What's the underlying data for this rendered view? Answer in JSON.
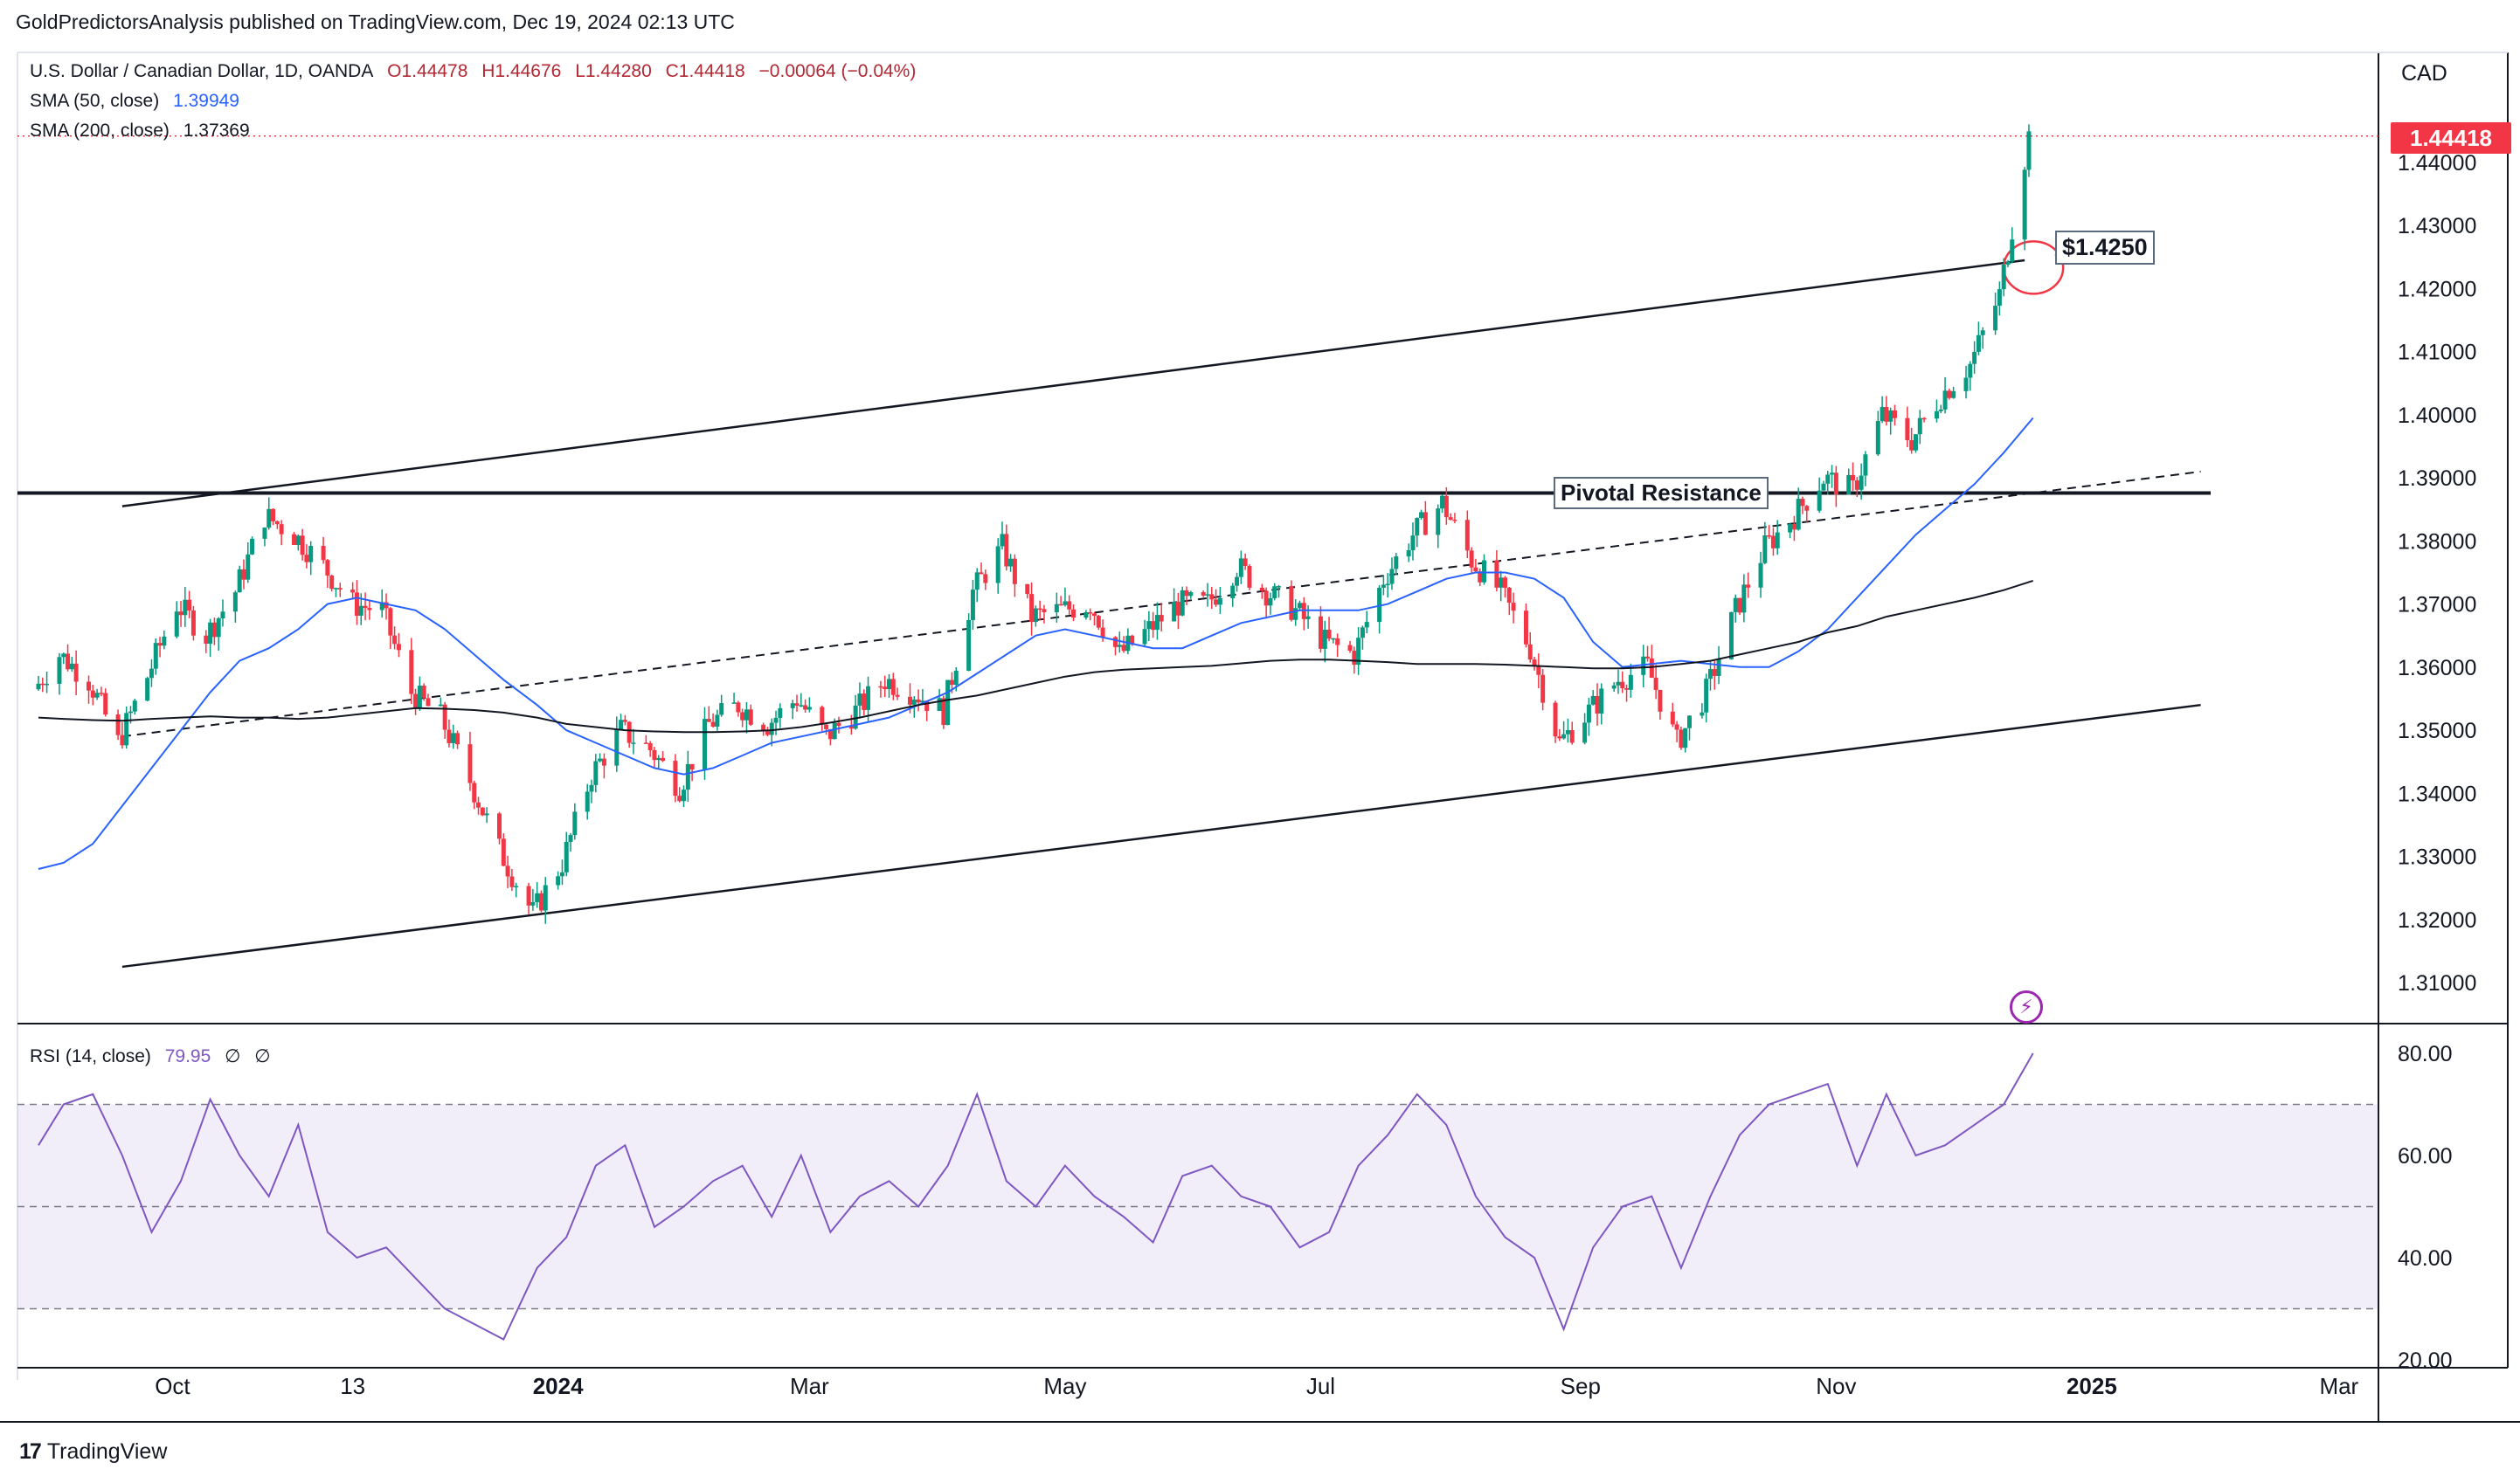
{
  "header": {
    "publisher_line": "GoldPredictorsAnalysis published on TradingView.com, Dec 19, 2024 02:13 UTC"
  },
  "legend": {
    "symbol": "U.S. Dollar / Canadian Dollar, 1D, OANDA",
    "open": "O1.44478",
    "high": "H1.44676",
    "low": "L1.44280",
    "close": "C1.44418",
    "change": "−0.00064 (−0.04%)",
    "sma50_label": "SMA (50, close)",
    "sma50_value": "1.39949",
    "sma200_label": "SMA (200, close)",
    "sma200_value": "1.37369",
    "rsi_label": "RSI (14, close)",
    "rsi_value": "79.95",
    "rsi_extra1": "∅",
    "rsi_extra2": "∅"
  },
  "price_axis": {
    "currency": "CAD",
    "current_price": "1.44418"
  },
  "annotations": {
    "level_label": "$1.4250",
    "pivot_label": "Pivotal Resistance"
  },
  "footer": {
    "logo_mark": "17",
    "brand": "TradingView"
  },
  "colors": {
    "up_candle": "#089981",
    "down_candle": "#f23645",
    "sma50": "#2962ff",
    "sma200": "#131722",
    "rsi_line": "#7e57c2",
    "rsi_band": "#7e57c2",
    "badge": "#f23645"
  },
  "chart_data": [
    {
      "type": "line",
      "title": "U.S. Dollar / Canadian Dollar, 1D, OANDA",
      "x_tick_labels": [
        "Oct",
        "13",
        "2024",
        "Mar",
        "May",
        "Jul",
        "Sep",
        "Nov",
        "2025",
        "Mar"
      ],
      "y_tick_labels": [
        "1.44000",
        "1.43000",
        "1.42000",
        "1.41000",
        "1.40000",
        "1.39000",
        "1.38000",
        "1.37000",
        "1.36000",
        "1.35000",
        "1.34000",
        "1.33000",
        "1.32000",
        "1.31000"
      ],
      "ylim": [
        1.305,
        1.452
      ],
      "x": [
        "2023-08-30",
        "2023-09-05",
        "2023-09-12",
        "2023-09-19",
        "2023-09-26",
        "2023-10-03",
        "2023-10-10",
        "2023-10-17",
        "2023-10-24",
        "2023-10-31",
        "2023-11-07",
        "2023-11-14",
        "2023-11-21",
        "2023-11-28",
        "2023-12-05",
        "2023-12-12",
        "2023-12-19",
        "2023-12-27",
        "2024-01-03",
        "2024-01-10",
        "2024-01-17",
        "2024-01-24",
        "2024-01-31",
        "2024-02-07",
        "2024-02-14",
        "2024-02-21",
        "2024-02-28",
        "2024-03-06",
        "2024-03-13",
        "2024-03-20",
        "2024-03-27",
        "2024-04-03",
        "2024-04-10",
        "2024-04-17",
        "2024-04-24",
        "2024-05-01",
        "2024-05-08",
        "2024-05-15",
        "2024-05-22",
        "2024-05-29",
        "2024-06-05",
        "2024-06-12",
        "2024-06-19",
        "2024-06-26",
        "2024-07-03",
        "2024-07-10",
        "2024-07-17",
        "2024-07-24",
        "2024-07-31",
        "2024-08-07",
        "2024-08-14",
        "2024-08-21",
        "2024-08-28",
        "2024-09-04",
        "2024-09-11",
        "2024-09-18",
        "2024-09-25",
        "2024-10-02",
        "2024-10-09",
        "2024-10-16",
        "2024-10-23",
        "2024-10-30",
        "2024-11-06",
        "2024-11-13",
        "2024-11-20",
        "2024-11-27",
        "2024-12-04",
        "2024-12-11",
        "2024-12-18"
      ],
      "series": [
        {
          "name": "U.S. Dollar / Canadian Dollar, 1D, OANDA",
          "values": [
            1.3565,
            1.362,
            1.358,
            1.348,
            1.3585,
            1.37,
            1.365,
            1.372,
            1.384,
            1.381,
            1.376,
            1.37,
            1.369,
            1.356,
            1.352,
            1.342,
            1.331,
            1.321,
            1.329,
            1.343,
            1.35,
            1.347,
            1.341,
            1.351,
            1.354,
            1.351,
            1.355,
            1.349,
            1.353,
            1.358,
            1.356,
            1.353,
            1.372,
            1.379,
            1.368,
            1.369,
            1.37,
            1.362,
            1.366,
            1.37,
            1.37,
            1.376,
            1.372,
            1.369,
            1.364,
            1.362,
            1.374,
            1.381,
            1.386,
            1.377,
            1.372,
            1.363,
            1.348,
            1.353,
            1.358,
            1.36,
            1.348,
            1.356,
            1.369,
            1.379,
            1.384,
            1.39,
            1.388,
            1.4,
            1.396,
            1.403,
            1.408,
            1.419,
            1.4442
          ]
        },
        {
          "name": "SMA (50, close)",
          "values": [
            1.328,
            1.329,
            1.332,
            1.338,
            1.344,
            1.35,
            1.356,
            1.361,
            1.363,
            1.366,
            1.37,
            1.371,
            1.37,
            1.369,
            1.366,
            1.362,
            1.358,
            1.354,
            1.35,
            1.348,
            1.346,
            1.344,
            1.343,
            1.344,
            1.346,
            1.348,
            1.349,
            1.35,
            1.351,
            1.352,
            1.354,
            1.356,
            1.359,
            1.362,
            1.365,
            1.366,
            1.365,
            1.364,
            1.363,
            1.363,
            1.365,
            1.367,
            1.368,
            1.369,
            1.369,
            1.369,
            1.37,
            1.372,
            1.374,
            1.375,
            1.375,
            1.374,
            1.371,
            1.364,
            1.36,
            1.3605,
            1.361,
            1.3605,
            1.36,
            1.36,
            1.3625,
            1.366,
            1.371,
            1.376,
            1.381,
            1.385,
            1.389,
            1.394,
            1.3995
          ]
        },
        {
          "name": "SMA (200, close)",
          "values": [
            1.352,
            1.3518,
            1.3516,
            1.3515,
            1.3518,
            1.352,
            1.3522,
            1.352,
            1.352,
            1.3518,
            1.352,
            1.3525,
            1.353,
            1.3535,
            1.3534,
            1.3532,
            1.3528,
            1.352,
            1.351,
            1.3505,
            1.35,
            1.3498,
            1.3497,
            1.3497,
            1.3498,
            1.35,
            1.3505,
            1.3512,
            1.352,
            1.353,
            1.354,
            1.3548,
            1.3555,
            1.3565,
            1.3575,
            1.3585,
            1.3592,
            1.3596,
            1.3598,
            1.36,
            1.3602,
            1.3606,
            1.361,
            1.3612,
            1.3612,
            1.361,
            1.3608,
            1.3605,
            1.3605,
            1.3605,
            1.3604,
            1.3602,
            1.36,
            1.3598,
            1.3598,
            1.36,
            1.3605,
            1.361,
            1.362,
            1.363,
            1.364,
            1.3655,
            1.3665,
            1.368,
            1.369,
            1.37,
            1.371,
            1.3722,
            1.3737
          ]
        }
      ],
      "trendlines": [
        {
          "name": "upper channel",
          "from": [
            "2023-09-19",
            1.3855
          ],
          "to": [
            "2024-12-16",
            1.4245
          ]
        },
        {
          "name": "lower channel",
          "from": [
            "2023-09-19",
            1.3125
          ],
          "to": [
            "2025-01-27",
            1.354
          ]
        },
        {
          "name": "mid dashed trend",
          "from": [
            "2023-09-19",
            1.349
          ],
          "to": [
            "2025-01-27",
            1.391
          ]
        },
        {
          "name": "Pivotal Resistance",
          "y": 1.3876
        }
      ],
      "highlight": {
        "label": "$1.4250",
        "value": 1.425
      },
      "current_price": 1.44418
    },
    {
      "type": "line",
      "title": "RSI (14, close)",
      "y_tick_labels": [
        "80.00",
        "60.00",
        "40.00",
        "20.00"
      ],
      "ylim": [
        20,
        83
      ],
      "bands": [
        30,
        50,
        70
      ],
      "x": [
        "2023-08-30",
        "2023-09-05",
        "2023-09-12",
        "2023-09-19",
        "2023-09-26",
        "2023-10-03",
        "2023-10-10",
        "2023-10-17",
        "2023-10-24",
        "2023-10-31",
        "2023-11-07",
        "2023-11-14",
        "2023-11-21",
        "2023-11-28",
        "2023-12-05",
        "2023-12-12",
        "2023-12-19",
        "2023-12-27",
        "2024-01-03",
        "2024-01-10",
        "2024-01-17",
        "2024-01-24",
        "2024-01-31",
        "2024-02-07",
        "2024-02-14",
        "2024-02-21",
        "2024-02-28",
        "2024-03-06",
        "2024-03-13",
        "2024-03-20",
        "2024-03-27",
        "2024-04-03",
        "2024-04-10",
        "2024-04-17",
        "2024-04-24",
        "2024-05-01",
        "2024-05-08",
        "2024-05-15",
        "2024-05-22",
        "2024-05-29",
        "2024-06-05",
        "2024-06-12",
        "2024-06-19",
        "2024-06-26",
        "2024-07-03",
        "2024-07-10",
        "2024-07-17",
        "2024-07-24",
        "2024-07-31",
        "2024-08-07",
        "2024-08-14",
        "2024-08-21",
        "2024-08-28",
        "2024-09-04",
        "2024-09-11",
        "2024-09-18",
        "2024-09-25",
        "2024-10-02",
        "2024-10-09",
        "2024-10-16",
        "2024-10-23",
        "2024-10-30",
        "2024-11-06",
        "2024-11-13",
        "2024-11-20",
        "2024-11-27",
        "2024-12-04",
        "2024-12-11",
        "2024-12-18"
      ],
      "series": [
        {
          "name": "RSI (14, close)",
          "values": [
            62,
            70,
            72,
            60,
            45,
            55,
            71,
            60,
            52,
            66,
            45,
            40,
            42,
            36,
            30,
            27,
            24,
            38,
            44,
            58,
            62,
            46,
            50,
            55,
            58,
            48,
            60,
            45,
            52,
            55,
            50,
            58,
            72,
            55,
            50,
            58,
            52,
            48,
            43,
            56,
            58,
            52,
            50,
            42,
            45,
            58,
            64,
            72,
            66,
            52,
            44,
            40,
            26,
            42,
            50,
            52,
            38,
            52,
            64,
            70,
            72,
            74,
            58,
            72,
            60,
            62,
            66,
            70,
            80
          ]
        }
      ]
    }
  ]
}
